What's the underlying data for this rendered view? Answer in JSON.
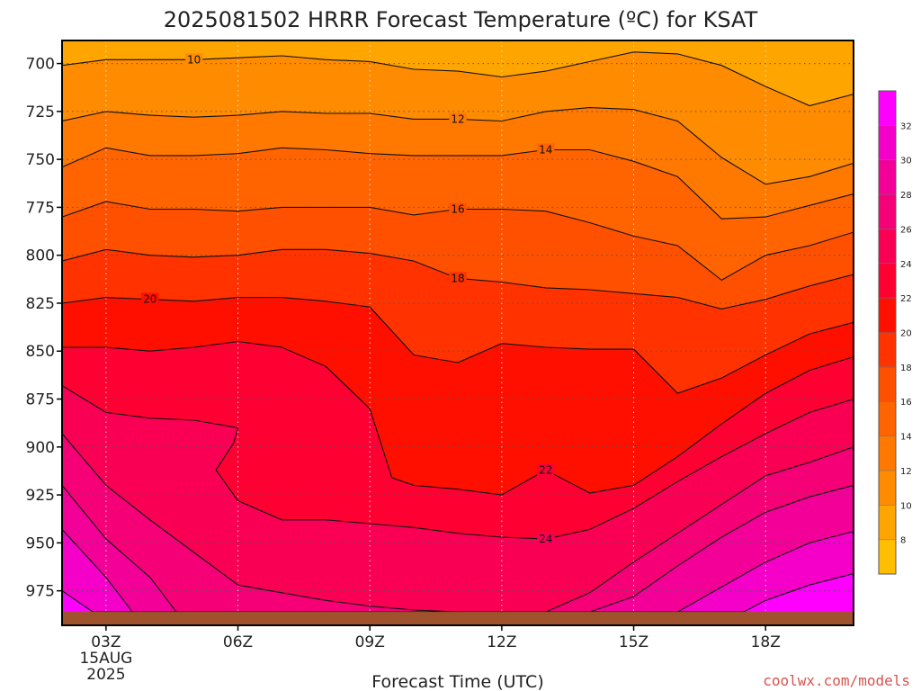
{
  "chart_data": {
    "type": "heatmap",
    "title": "2025081502 HRRR Forecast Temperature (ºC) for KSAT",
    "xlabel": "Forecast Time (UTC)",
    "credit": "coolwx.com/models",
    "x": [
      2,
      3,
      4,
      5,
      6,
      7,
      8,
      9,
      10,
      11,
      12,
      13,
      14,
      15,
      16,
      17,
      18,
      19,
      20
    ],
    "x_ticks": [
      {
        "x": 3,
        "label": "03Z",
        "sublabels": [
          "15AUG",
          "2025"
        ]
      },
      {
        "x": 6,
        "label": "06Z",
        "sublabels": []
      },
      {
        "x": 9,
        "label": "09Z",
        "sublabels": []
      },
      {
        "x": 12,
        "label": "12Z",
        "sublabels": []
      },
      {
        "x": 15,
        "label": "15Z",
        "sublabels": []
      },
      {
        "x": 18,
        "label": "18Z",
        "sublabels": []
      }
    ],
    "y_ticks": [
      700,
      725,
      750,
      775,
      800,
      825,
      850,
      875,
      900,
      925,
      950,
      975
    ],
    "ylim": [
      688,
      993
    ],
    "ground_level": 986,
    "contour_levels": [
      10,
      12,
      14,
      16,
      18,
      20,
      22,
      24,
      26,
      28,
      30,
      32
    ],
    "contours": [
      {
        "level": 10,
        "label": "10",
        "label_x": 5.0,
        "points": [
          [
            2,
            701
          ],
          [
            3,
            698
          ],
          [
            4,
            698
          ],
          [
            5,
            698
          ],
          [
            6,
            697
          ],
          [
            7,
            696
          ],
          [
            8,
            698
          ],
          [
            9,
            699
          ],
          [
            10,
            703
          ],
          [
            11,
            704
          ],
          [
            12,
            707
          ],
          [
            13,
            704
          ],
          [
            14,
            699
          ],
          [
            15,
            694
          ],
          [
            16,
            695
          ],
          [
            17,
            701
          ],
          [
            18,
            712
          ],
          [
            19,
            722
          ],
          [
            20,
            716
          ]
        ]
      },
      {
        "level": 12,
        "label": "12",
        "label_x": 11.0,
        "points": [
          [
            2,
            730
          ],
          [
            3,
            725
          ],
          [
            4,
            727
          ],
          [
            5,
            728
          ],
          [
            6,
            727
          ],
          [
            7,
            725
          ],
          [
            8,
            726
          ],
          [
            9,
            726
          ],
          [
            10,
            729
          ],
          [
            11,
            729
          ],
          [
            12,
            730
          ],
          [
            13,
            725
          ],
          [
            14,
            723
          ],
          [
            15,
            724
          ],
          [
            16,
            730
          ],
          [
            17,
            749
          ],
          [
            18,
            763
          ],
          [
            19,
            759
          ],
          [
            20,
            752
          ]
        ]
      },
      {
        "level": 14,
        "label": "14",
        "label_x": 13.0,
        "points": [
          [
            2,
            754
          ],
          [
            3,
            744
          ],
          [
            4,
            748
          ],
          [
            5,
            748
          ],
          [
            6,
            747
          ],
          [
            7,
            744
          ],
          [
            8,
            745
          ],
          [
            9,
            747
          ],
          [
            10,
            748
          ],
          [
            11,
            748
          ],
          [
            12,
            748
          ],
          [
            13,
            745
          ],
          [
            14,
            745
          ],
          [
            15,
            751
          ],
          [
            16,
            759
          ],
          [
            17,
            781
          ],
          [
            18,
            780
          ],
          [
            19,
            774
          ],
          [
            20,
            768
          ]
        ]
      },
      {
        "level": 16,
        "label": "16",
        "label_x": 11.0,
        "points": [
          [
            2,
            780
          ],
          [
            3,
            772
          ],
          [
            4,
            776
          ],
          [
            5,
            776
          ],
          [
            6,
            777
          ],
          [
            7,
            775
          ],
          [
            8,
            775
          ],
          [
            9,
            775
          ],
          [
            10,
            779
          ],
          [
            11,
            776
          ],
          [
            12,
            776
          ],
          [
            13,
            777
          ],
          [
            14,
            783
          ],
          [
            15,
            790
          ],
          [
            16,
            795
          ],
          [
            17,
            813
          ],
          [
            18,
            800
          ],
          [
            19,
            795
          ],
          [
            20,
            788
          ]
        ]
      },
      {
        "level": 18,
        "label": "18",
        "label_x": 11.0,
        "points": [
          [
            2,
            803
          ],
          [
            3,
            797
          ],
          [
            4,
            800
          ],
          [
            5,
            801
          ],
          [
            6,
            800
          ],
          [
            7,
            797
          ],
          [
            8,
            797
          ],
          [
            9,
            799
          ],
          [
            10,
            803
          ],
          [
            11,
            812
          ],
          [
            12,
            814
          ],
          [
            13,
            817
          ],
          [
            14,
            818
          ],
          [
            15,
            820
          ],
          [
            16,
            822
          ],
          [
            17,
            828
          ],
          [
            18,
            823
          ],
          [
            19,
            816
          ],
          [
            20,
            810
          ]
        ]
      },
      {
        "level": 20,
        "label": "20",
        "label_x": 4.0,
        "points": [
          [
            2,
            825
          ],
          [
            3,
            822
          ],
          [
            4,
            823
          ],
          [
            5,
            824
          ],
          [
            6,
            822
          ],
          [
            7,
            822
          ],
          [
            8,
            824
          ],
          [
            9,
            827
          ],
          [
            10,
            852
          ],
          [
            11,
            856
          ],
          [
            12,
            846
          ],
          [
            13,
            848
          ],
          [
            14,
            849
          ],
          [
            15,
            849
          ],
          [
            16,
            872
          ],
          [
            17,
            864
          ],
          [
            18,
            852
          ],
          [
            19,
            841
          ],
          [
            20,
            835
          ]
        ]
      },
      {
        "level": 22,
        "label": "22",
        "label_x": 13.0,
        "points": [
          [
            2,
            848
          ],
          [
            3,
            848
          ],
          [
            4,
            850
          ],
          [
            5,
            848
          ],
          [
            6,
            845
          ],
          [
            7,
            848
          ],
          [
            8,
            858
          ],
          [
            9,
            880
          ],
          [
            9.5,
            916
          ],
          [
            10,
            920
          ],
          [
            11,
            922
          ],
          [
            12,
            925
          ],
          [
            13,
            912
          ],
          [
            14,
            924
          ],
          [
            15,
            920
          ],
          [
            16,
            905
          ],
          [
            17,
            888
          ],
          [
            18,
            872
          ],
          [
            19,
            860
          ],
          [
            20,
            853
          ]
        ]
      },
      {
        "level": 24,
        "label": "24",
        "label_x": 13.0,
        "points": [
          [
            2,
            868
          ],
          [
            3,
            882
          ],
          [
            4,
            885
          ],
          [
            5,
            886
          ],
          [
            6,
            890
          ],
          [
            5.9,
            898
          ],
          [
            5.5,
            912
          ],
          [
            6,
            928
          ],
          [
            7,
            938
          ],
          [
            8,
            938
          ],
          [
            9,
            940
          ],
          [
            10,
            942
          ],
          [
            11,
            945
          ],
          [
            12,
            947
          ],
          [
            13,
            948
          ],
          [
            14,
            943
          ],
          [
            15,
            932
          ],
          [
            16,
            918
          ],
          [
            17,
            905
          ],
          [
            18,
            893
          ],
          [
            19,
            882
          ],
          [
            20,
            875
          ]
        ]
      },
      {
        "level": 26,
        "label": "",
        "label_x": 0,
        "points": [
          [
            2,
            893
          ],
          [
            3,
            920
          ],
          [
            4,
            938
          ],
          [
            5,
            955
          ],
          [
            6,
            972
          ],
          [
            7,
            976
          ],
          [
            8,
            980
          ],
          [
            9,
            983
          ],
          [
            10,
            985
          ],
          [
            11,
            986
          ],
          [
            12,
            986
          ],
          [
            13,
            986
          ],
          [
            14,
            976
          ],
          [
            15,
            960
          ],
          [
            16,
            945
          ],
          [
            17,
            930
          ],
          [
            18,
            915
          ],
          [
            19,
            908
          ],
          [
            20,
            900
          ]
        ]
      },
      {
        "level": 28,
        "label": "",
        "label_x": 0,
        "points": [
          [
            2,
            920
          ],
          [
            3,
            948
          ],
          [
            4,
            968
          ],
          [
            4.6,
            986
          ],
          [
            14,
            986
          ],
          [
            15,
            978
          ],
          [
            16,
            962
          ],
          [
            17,
            947
          ],
          [
            18,
            934
          ],
          [
            19,
            926
          ],
          [
            20,
            920
          ]
        ]
      },
      {
        "level": 30,
        "label": "",
        "label_x": 0,
        "points": [
          [
            2,
            943
          ],
          [
            3,
            968
          ],
          [
            3.6,
            986
          ],
          [
            16,
            986
          ],
          [
            17,
            973
          ],
          [
            18,
            960
          ],
          [
            19,
            950
          ],
          [
            20,
            944
          ]
        ]
      },
      {
        "level": 32,
        "label": "",
        "label_x": 0,
        "points": [
          [
            2,
            975
          ],
          [
            2.7,
            986
          ],
          [
            17.5,
            986
          ],
          [
            18,
            980
          ],
          [
            19,
            972
          ],
          [
            20,
            966
          ]
        ]
      }
    ],
    "colorbar": {
      "labels": [
        8,
        10,
        12,
        14,
        16,
        18,
        20,
        22,
        24,
        26,
        28,
        30,
        32
      ],
      "colors": [
        "#ffbf00",
        "#ffa500",
        "#ff8c00",
        "#ff7800",
        "#ff6400",
        "#ff5000",
        "#ff3200",
        "#ff0f00",
        "#ff0033",
        "#f90055",
        "#f50077",
        "#f30099",
        "#f500c8",
        "#ff00ff"
      ]
    },
    "ground_color": "#a0522d",
    "grid": true
  }
}
